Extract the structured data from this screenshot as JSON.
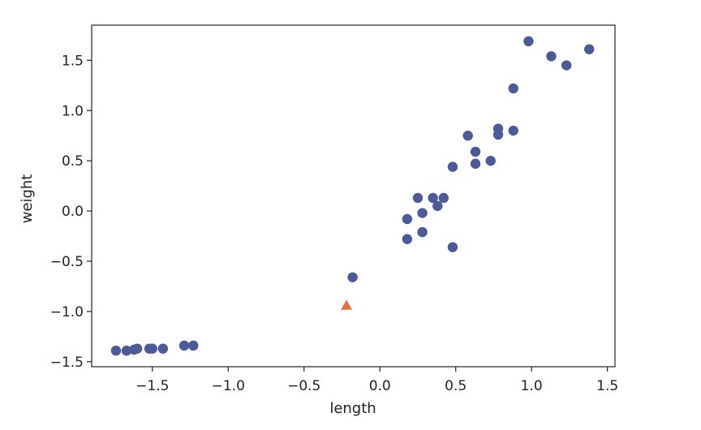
{
  "chart_data": {
    "type": "scatter",
    "title": "",
    "xlabel": "length",
    "ylabel": "weight",
    "xlim": [
      -1.9,
      1.55
    ],
    "ylim": [
      -1.55,
      1.85
    ],
    "xticks": [
      -1.5,
      -1.0,
      -0.5,
      0.0,
      0.5,
      1.0,
      1.5
    ],
    "xtick_labels": [
      "−1.5",
      "−1.0",
      "−0.5",
      "0.0",
      "0.5",
      "1.0",
      "1.5"
    ],
    "yticks": [
      -1.5,
      -1.0,
      -0.5,
      0.0,
      0.5,
      1.0,
      1.5
    ],
    "ytick_labels": [
      "−1.5",
      "−1.0",
      "−0.5",
      "0.0",
      "0.5",
      "1.0",
      "1.5"
    ],
    "grid": false,
    "series": [
      {
        "marker": "circle",
        "color": "#4c5a97",
        "points": [
          [
            -1.74,
            -1.39
          ],
          [
            -1.67,
            -1.39
          ],
          [
            -1.62,
            -1.38
          ],
          [
            -1.6,
            -1.37
          ],
          [
            -1.52,
            -1.37
          ],
          [
            -1.5,
            -1.37
          ],
          [
            -1.43,
            -1.37
          ],
          [
            -1.29,
            -1.34
          ],
          [
            -1.23,
            -1.34
          ],
          [
            -0.18,
            -0.66
          ],
          [
            0.18,
            -0.28
          ],
          [
            0.18,
            -0.08
          ],
          [
            0.25,
            0.13
          ],
          [
            0.28,
            -0.02
          ],
          [
            0.28,
            -0.21
          ],
          [
            0.35,
            0.13
          ],
          [
            0.38,
            0.05
          ],
          [
            0.42,
            0.13
          ],
          [
            0.48,
            0.44
          ],
          [
            0.48,
            -0.36
          ],
          [
            0.58,
            0.75
          ],
          [
            0.63,
            0.59
          ],
          [
            0.63,
            0.47
          ],
          [
            0.73,
            0.5
          ],
          [
            0.78,
            0.82
          ],
          [
            0.78,
            0.76
          ],
          [
            0.88,
            0.8
          ],
          [
            0.88,
            1.22
          ],
          [
            0.98,
            1.69
          ],
          [
            1.13,
            1.54
          ],
          [
            1.23,
            1.45
          ],
          [
            1.38,
            1.61
          ]
        ]
      },
      {
        "marker": "triangle",
        "color": "#dd7447",
        "points": [
          [
            -0.22,
            -0.94
          ]
        ]
      }
    ]
  }
}
